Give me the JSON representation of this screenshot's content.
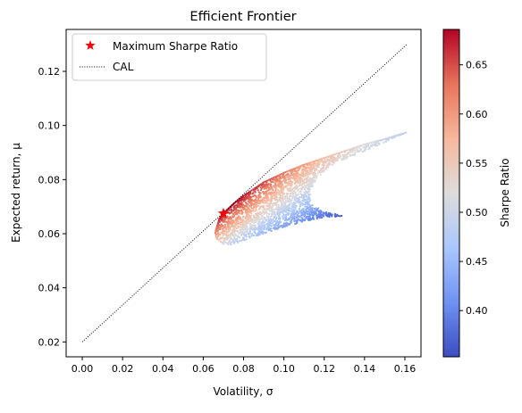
{
  "chart_data": {
    "type": "scatter",
    "title": "Efficient Frontier",
    "xlabel": "Volatility, σ",
    "ylabel": "Expected return, μ",
    "xlim": [
      -0.008,
      0.168
    ],
    "ylim": [
      0.0145,
      0.1355
    ],
    "xticks": [
      0.0,
      0.02,
      0.04,
      0.06,
      0.08,
      0.1,
      0.12,
      0.14,
      0.16
    ],
    "xtick_labels": [
      "0.00",
      "0.02",
      "0.04",
      "0.06",
      "0.08",
      "0.10",
      "0.12",
      "0.14",
      "0.16"
    ],
    "yticks": [
      0.02,
      0.04,
      0.06,
      0.08,
      0.1,
      0.12
    ],
    "ytick_labels": [
      "0.02",
      "0.04",
      "0.06",
      "0.08",
      "0.10",
      "0.12"
    ],
    "grid": false,
    "legend": {
      "placement": "top-left",
      "entries": [
        {
          "label": "Maximum Sharpe Ratio",
          "marker": "star",
          "color": "#ff0000"
        },
        {
          "label": "CAL",
          "marker": "dotted-line",
          "color": "#000000"
        }
      ]
    },
    "colorbar": {
      "label": "Sharpe Ratio",
      "colormap": "coolwarm",
      "range": [
        0.353,
        0.686
      ],
      "ticks": [
        0.4,
        0.45,
        0.5,
        0.55,
        0.6,
        0.65
      ],
      "tick_labels": [
        "0.40",
        "0.45",
        "0.50",
        "0.55",
        "0.60",
        "0.65"
      ],
      "colormap_stops": [
        "#3b4cc0",
        "#6f92f3",
        "#aac7fd",
        "#dddcdc",
        "#f7b89c",
        "#e7745b",
        "#b40426"
      ]
    },
    "cal_line": {
      "x": [
        0.0,
        0.161
      ],
      "y": [
        0.02,
        0.13
      ],
      "color": "#000000",
      "style": "dotted"
    },
    "max_sharpe_point": {
      "x": 0.07,
      "y": 0.0675,
      "color": "#ff0000",
      "marker": "star"
    },
    "portfolios": {
      "description_of_cloud_shape": "",
      "frontier_upper": [
        {
          "x": 0.066,
          "y": 0.0605
        },
        {
          "x": 0.068,
          "y": 0.0655
        },
        {
          "x": 0.07,
          "y": 0.0675
        },
        {
          "x": 0.075,
          "y": 0.071
        },
        {
          "x": 0.08,
          "y": 0.074
        },
        {
          "x": 0.09,
          "y": 0.079
        },
        {
          "x": 0.1,
          "y": 0.0825
        },
        {
          "x": 0.11,
          "y": 0.0855
        },
        {
          "x": 0.12,
          "y": 0.088
        },
        {
          "x": 0.13,
          "y": 0.0905
        },
        {
          "x": 0.14,
          "y": 0.093
        },
        {
          "x": 0.15,
          "y": 0.095
        },
        {
          "x": 0.161,
          "y": 0.0975
        }
      ],
      "frontier_lower": [
        {
          "x": 0.066,
          "y": 0.0595
        },
        {
          "x": 0.067,
          "y": 0.0575
        },
        {
          "x": 0.07,
          "y": 0.056
        },
        {
          "x": 0.075,
          "y": 0.056
        },
        {
          "x": 0.08,
          "y": 0.0575
        },
        {
          "x": 0.09,
          "y": 0.06
        },
        {
          "x": 0.1,
          "y": 0.0625
        },
        {
          "x": 0.11,
          "y": 0.0645
        },
        {
          "x": 0.12,
          "y": 0.066
        },
        {
          "x": 0.13,
          "y": 0.0665
        }
      ],
      "inner_notch": [
        {
          "x": 0.161,
          "y": 0.0975
        },
        {
          "x": 0.14,
          "y": 0.0905
        },
        {
          "x": 0.125,
          "y": 0.086
        },
        {
          "x": 0.117,
          "y": 0.081
        },
        {
          "x": 0.113,
          "y": 0.076
        },
        {
          "x": 0.113,
          "y": 0.072
        },
        {
          "x": 0.118,
          "y": 0.069
        },
        {
          "x": 0.124,
          "y": 0.0675
        },
        {
          "x": 0.13,
          "y": 0.0665
        }
      ]
    }
  }
}
